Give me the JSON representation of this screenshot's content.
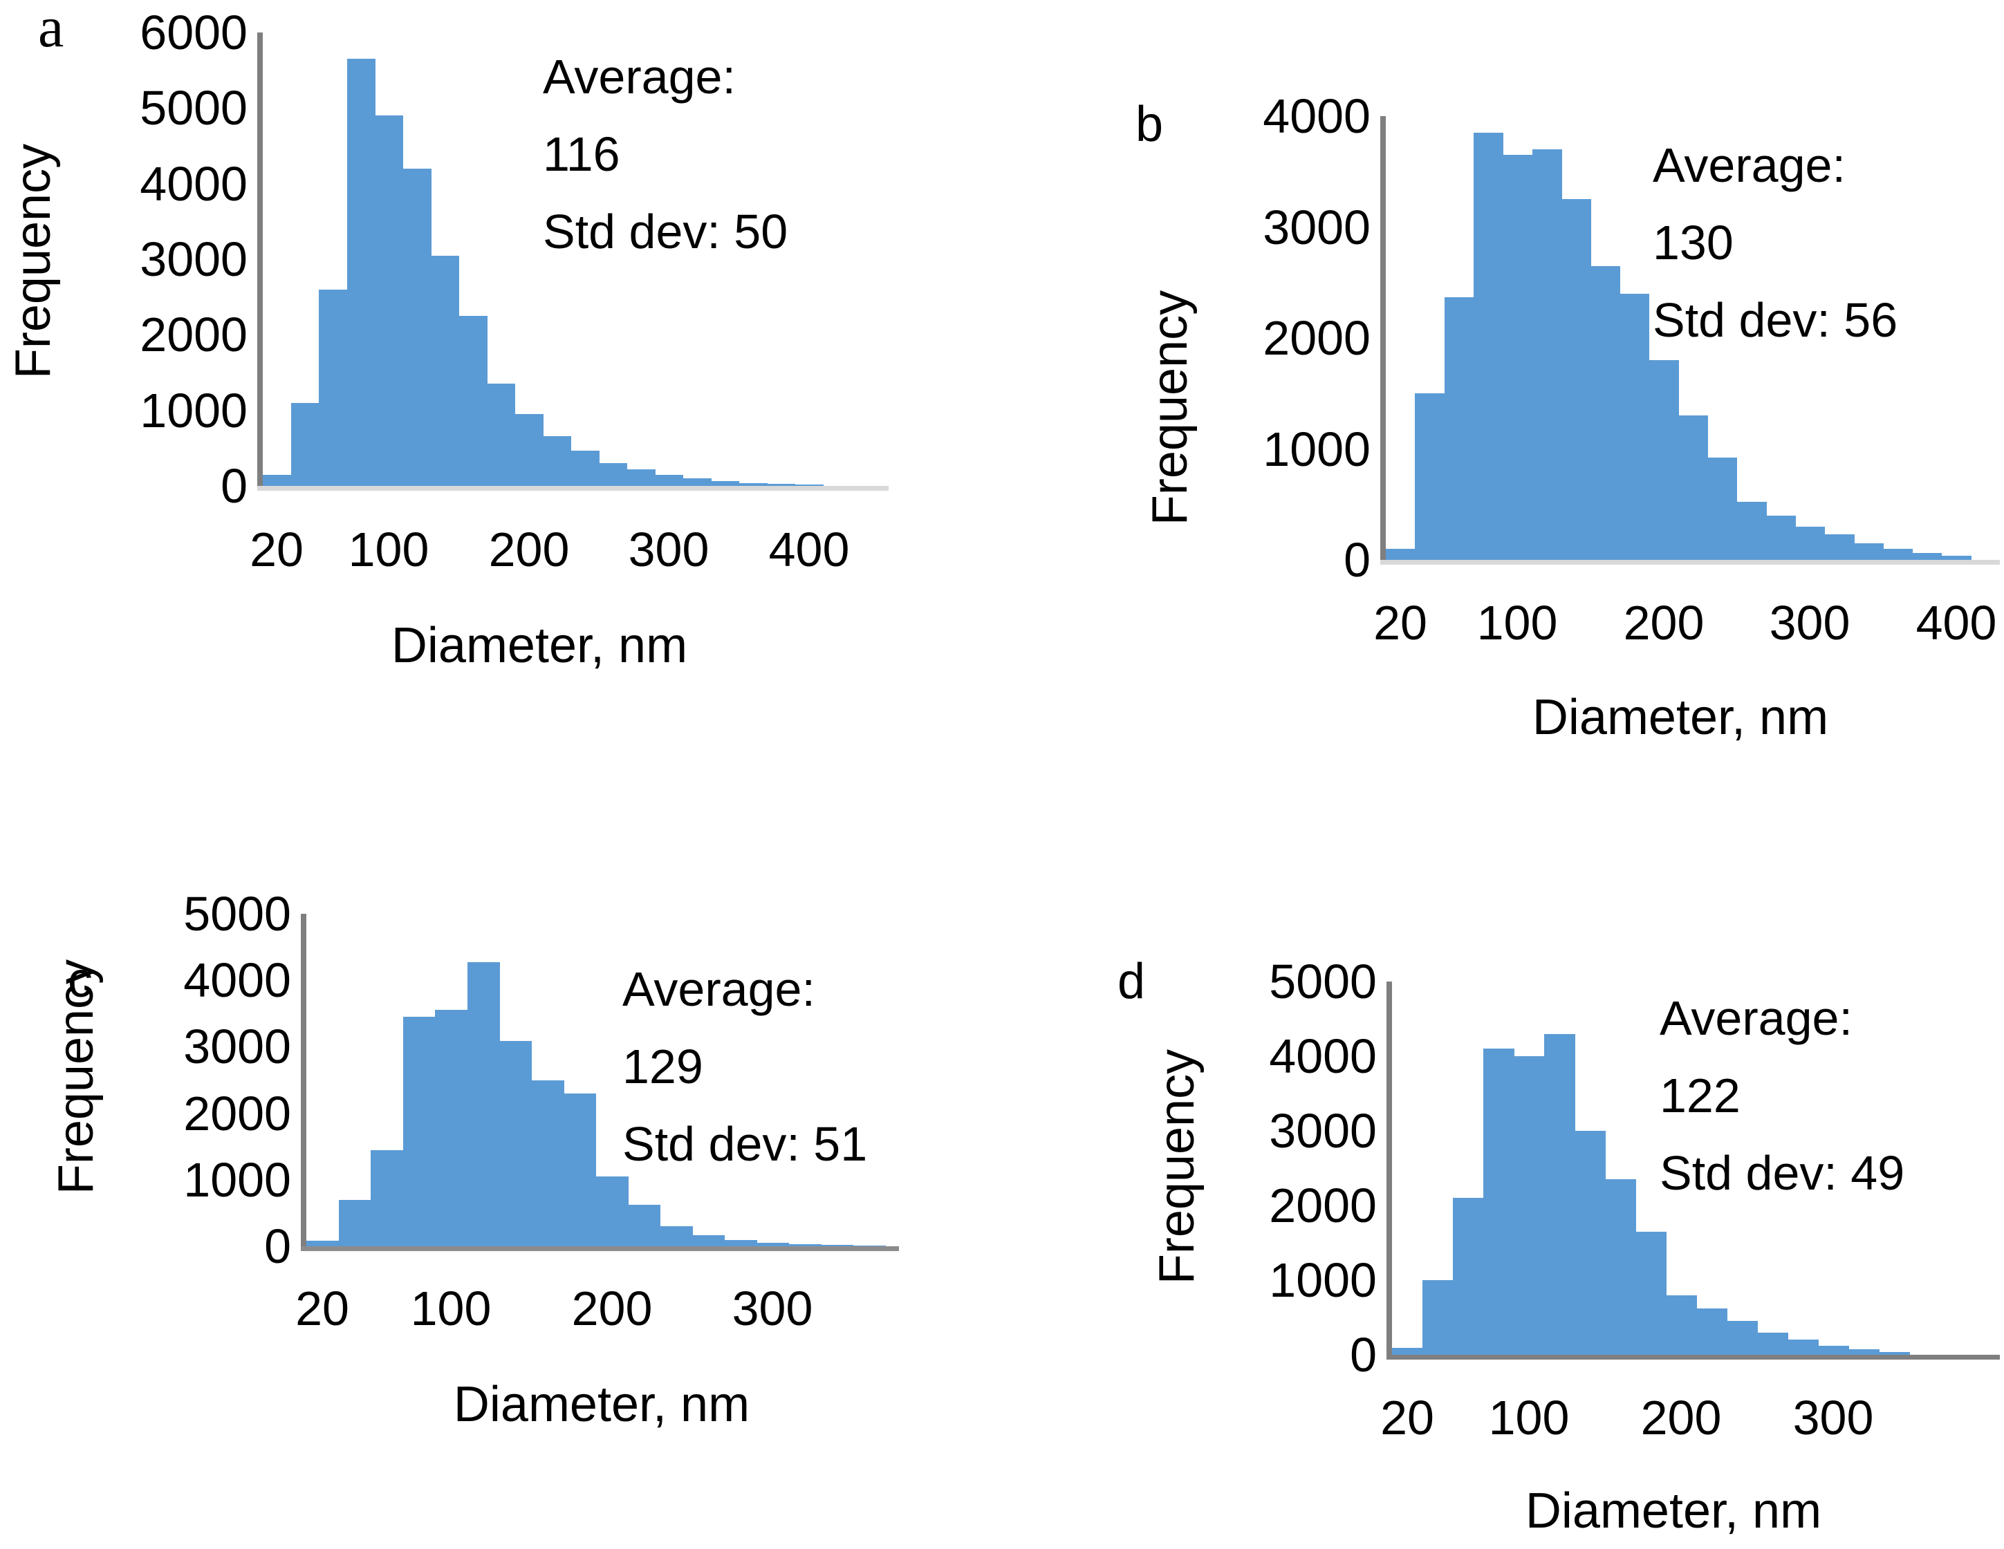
{
  "figure": {
    "description": "Four particle size distribution histograms",
    "background_color": "#FFFFFF"
  },
  "colors": {
    "bar_fill": "#5B9BD5",
    "axis_line": "#7F7F7F",
    "baseline_light": "#D9D9D9",
    "baseline_mid": "#8C8C8C",
    "baseline_dark": "#7F7F7F",
    "text": "#000000"
  },
  "chart_data": [
    {
      "id": "a",
      "panel_label": "a",
      "type": "bar",
      "title": "",
      "xlabel": "Diameter, nm",
      "ylabel": "Frequency",
      "bin_width_nm": 20,
      "categories": [
        20,
        40,
        60,
        80,
        100,
        120,
        140,
        160,
        180,
        200,
        220,
        240,
        260,
        280,
        300,
        320,
        340,
        360,
        380,
        400
      ],
      "values": [
        150,
        1100,
        2600,
        5650,
        4900,
        4200,
        3050,
        2250,
        1350,
        950,
        660,
        470,
        300,
        220,
        150,
        100,
        60,
        40,
        25,
        15
      ],
      "ylim": [
        0,
        6000
      ],
      "ytick_labels": [
        0,
        1000,
        2000,
        3000,
        4000,
        5000,
        6000
      ],
      "xtick_labels_shown": [
        20,
        100,
        200,
        300,
        400
      ],
      "grid": false,
      "legend": false,
      "annotation": {
        "average_label": "Average:",
        "average": "116",
        "std_label": "Std dev:",
        "std": "50"
      }
    },
    {
      "id": "b",
      "panel_label": "b",
      "type": "bar",
      "title": "",
      "xlabel": "Diameter, nm",
      "ylabel": "Frequency",
      "bin_width_nm": 20,
      "categories": [
        20,
        40,
        60,
        80,
        100,
        120,
        140,
        160,
        180,
        200,
        220,
        240,
        260,
        280,
        300,
        320,
        340,
        360,
        380,
        400
      ],
      "values": [
        100,
        1500,
        2370,
        3850,
        3650,
        3700,
        3250,
        2650,
        2400,
        1800,
        1300,
        925,
        525,
        400,
        300,
        230,
        150,
        100,
        60,
        40
      ],
      "ylim": [
        0,
        4000
      ],
      "ytick_labels": [
        0,
        1000,
        2000,
        3000,
        4000
      ],
      "xtick_labels_shown": [
        20,
        100,
        200,
        300,
        400
      ],
      "grid": false,
      "legend": false,
      "annotation": {
        "average_label": "Average:",
        "average": "130",
        "std_label": "Std dev:",
        "std": "56"
      }
    },
    {
      "id": "c",
      "panel_label": "c",
      "type": "bar",
      "title": "",
      "xlabel": "Diameter, nm",
      "ylabel": "Frequency",
      "bin_width_nm": 20,
      "categories": [
        20,
        40,
        60,
        80,
        100,
        120,
        140,
        160,
        180,
        200,
        220,
        240,
        260,
        280,
        300,
        320,
        340,
        360
      ],
      "values": [
        80,
        700,
        1450,
        3450,
        3550,
        4270,
        3090,
        2500,
        2300,
        1050,
        620,
        300,
        170,
        90,
        50,
        30,
        20,
        10
      ],
      "ylim": [
        0,
        5000
      ],
      "ytick_labels": [
        0,
        1000,
        2000,
        3000,
        4000,
        5000
      ],
      "xtick_labels_shown": [
        20,
        100,
        200,
        300
      ],
      "grid": false,
      "legend": false,
      "annotation": {
        "average_label": "Average:",
        "average": "129",
        "std_label": "Std dev:",
        "std": "51"
      }
    },
    {
      "id": "d",
      "panel_label": "d",
      "type": "bar",
      "title": "",
      "xlabel": "Diameter, nm",
      "ylabel": "Frequency",
      "bin_width_nm": 20,
      "categories": [
        20,
        40,
        60,
        80,
        100,
        120,
        140,
        160,
        180,
        200,
        220,
        240,
        260,
        280,
        300,
        320,
        340
      ],
      "values": [
        90,
        1000,
        2100,
        4100,
        4000,
        4300,
        3000,
        2350,
        1650,
        800,
        620,
        450,
        300,
        200,
        120,
        70,
        40
      ],
      "ylim": [
        0,
        5000
      ],
      "ytick_labels": [
        0,
        1000,
        2000,
        3000,
        4000,
        5000
      ],
      "xtick_labels_shown": [
        20,
        100,
        200,
        300
      ],
      "grid": false,
      "legend": false,
      "annotation": {
        "average_label": "Average:",
        "average": "122",
        "std_label": "Std dev:",
        "std": "49"
      }
    }
  ]
}
